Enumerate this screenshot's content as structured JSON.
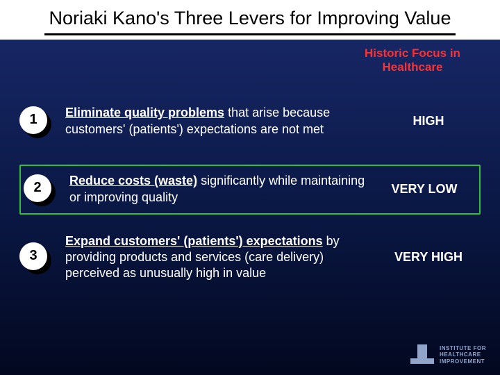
{
  "title": "Noriaki Kano's Three Levers for Improving Value",
  "header_right_line1": "Historic Focus in",
  "header_right_line2": "Healthcare",
  "levers": [
    {
      "num": "1",
      "lead": "Eliminate quality problems",
      "rest": " that arise because customers' (patients') expectations are not met",
      "focus": "HIGH",
      "highlighted": false
    },
    {
      "num": "2",
      "lead": "Reduce costs (waste)",
      "rest": " significantly while maintaining or improving quality",
      "focus": "VERY LOW",
      "highlighted": true
    },
    {
      "num": "3",
      "lead": "Expand customers' (patients') expectations",
      "rest": " by providing products and services (care delivery) perceived as unusually high in value",
      "focus": "VERY HIGH",
      "highlighted": false
    }
  ],
  "logo": {
    "line1": "INSTITUTE FOR",
    "line2": "HEALTHCARE",
    "line3": "IMPROVEMENT"
  },
  "colors": {
    "highlight_border": "#2fbf3a",
    "header_right": "#ff3030",
    "bg_top": "#1a2a6c",
    "bg_bottom": "#030820"
  }
}
